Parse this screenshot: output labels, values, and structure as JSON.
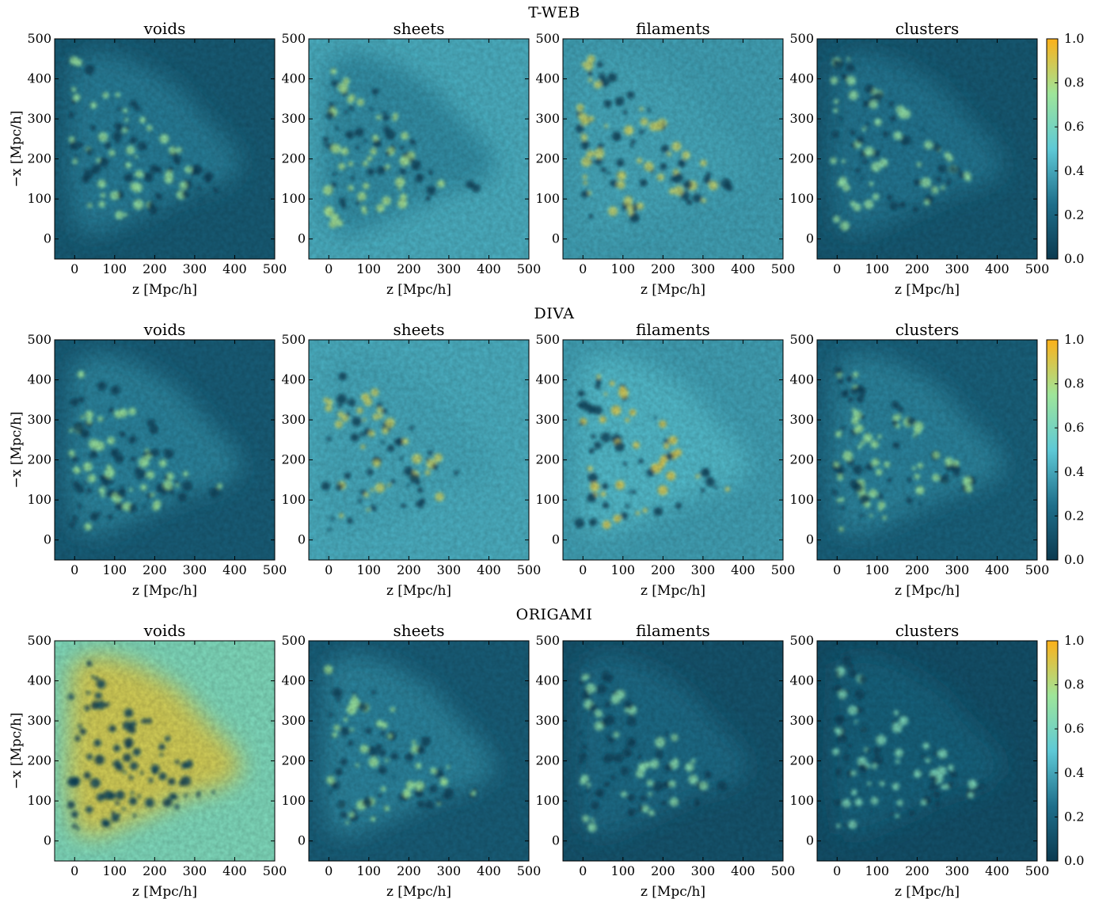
{
  "figure": {
    "rows": [
      {
        "title": "T-WEB"
      },
      {
        "title": "DIVA"
      },
      {
        "title": "ORIGAMI"
      }
    ],
    "columns": [
      "voids",
      "sheets",
      "filaments",
      "clusters"
    ]
  },
  "chart_data": {
    "type": "heatmap",
    "xlabel": "z [Mpc/h]",
    "ylabel": "−x [Mpc/h]",
    "xlim": [
      -50,
      500
    ],
    "ylim": [
      -50,
      500
    ],
    "xticks": [
      0,
      100,
      200,
      300,
      400,
      500
    ],
    "yticks": [
      0,
      100,
      200,
      300,
      400,
      500
    ],
    "colorbar": {
      "range": [
        0.0,
        1.0
      ],
      "ticks": [
        "0.0",
        "0.2",
        "0.4",
        "0.6",
        "0.8",
        "1.0"
      ],
      "colormap": [
        "#0b3a50",
        "#1f6f8b",
        "#5ec9d6",
        "#9ee59a",
        "#fcb11a"
      ]
    },
    "panels": [
      {
        "row": "T-WEB",
        "column": "voids",
        "background": 0.15,
        "inside": 0.28
      },
      {
        "row": "T-WEB",
        "column": "sheets",
        "background": 0.42,
        "inside": 0.33
      },
      {
        "row": "T-WEB",
        "column": "filaments",
        "background": 0.38,
        "inside": 0.4
      },
      {
        "row": "T-WEB",
        "column": "clusters",
        "background": 0.14,
        "inside": 0.26
      },
      {
        "row": "DIVA",
        "column": "voids",
        "background": 0.16,
        "inside": 0.3
      },
      {
        "row": "DIVA",
        "column": "sheets",
        "background": 0.42,
        "inside": 0.4
      },
      {
        "row": "DIVA",
        "column": "filaments",
        "background": 0.38,
        "inside": 0.45
      },
      {
        "row": "DIVA",
        "column": "clusters",
        "background": 0.18,
        "inside": 0.3
      },
      {
        "row": "ORIGAMI",
        "column": "voids",
        "background": 0.62,
        "inside": 0.88
      },
      {
        "row": "ORIGAMI",
        "column": "sheets",
        "background": 0.16,
        "inside": 0.3
      },
      {
        "row": "ORIGAMI",
        "column": "filaments",
        "background": 0.12,
        "inside": 0.22
      },
      {
        "row": "ORIGAMI",
        "column": "clusters",
        "background": 0.1,
        "inside": 0.18
      }
    ]
  }
}
